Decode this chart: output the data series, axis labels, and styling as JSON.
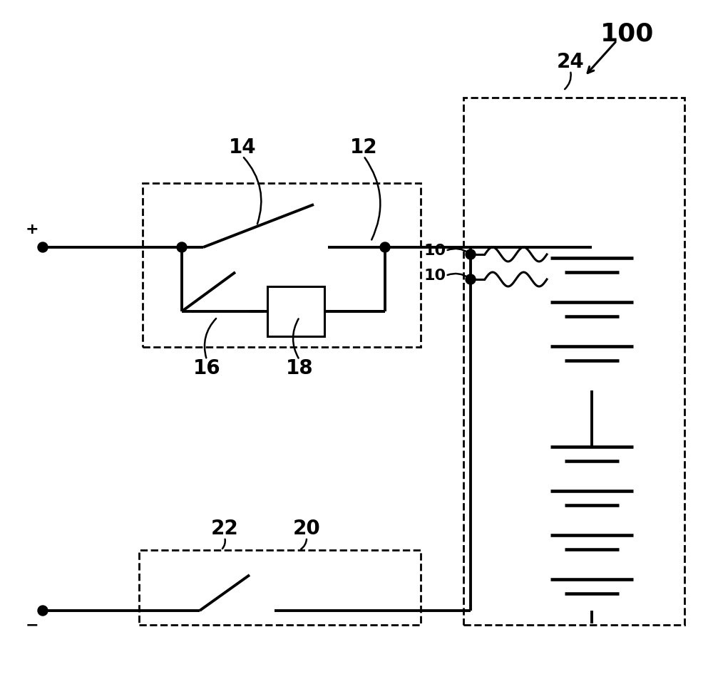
{
  "bg": "#ffffff",
  "lw": 2.2,
  "lw_thick": 2.8,
  "fontsize_large": 20,
  "fontsize_med": 16,
  "fig_w": 10.0,
  "fig_h": 9.67,
  "dpi": 100
}
